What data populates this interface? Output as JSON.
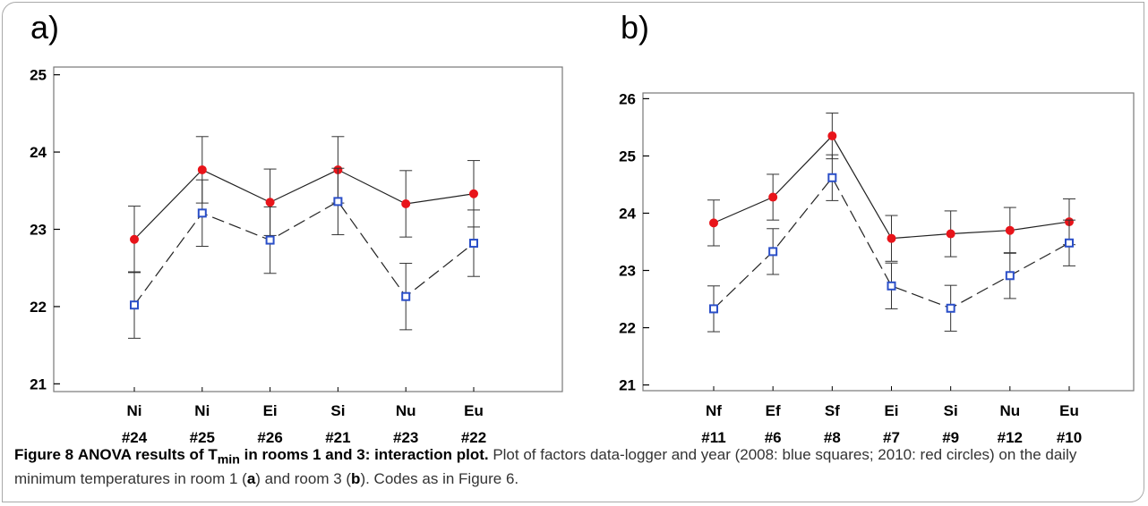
{
  "caption": {
    "figure_label": "Figure 8",
    "title_main": "ANOVA results of T",
    "title_sub": "min",
    "title_rest": " in rooms 1 and 3: interaction plot.",
    "text_before_a": " Plot of factors data-logger and year (2008: blue squares; 2010: red circles) on the daily minimum temperatures in room 1 (",
    "bold_a": "a",
    "text_between": ") and room 3 (",
    "bold_b": "b",
    "text_end": "). Codes as in Figure 6."
  },
  "colors": {
    "series_2008": "#2b4fc8",
    "series_2010": "#e8141a",
    "axis": "#000000"
  },
  "chart_data": [
    {
      "panel_label": "a)",
      "type": "line",
      "categories": [
        "Ni",
        "Ni",
        "Ei",
        "Si",
        "Nu",
        "Eu"
      ],
      "category_codes": [
        "#24",
        "#25",
        "#26",
        "#21",
        "#23",
        "#22"
      ],
      "ylim": [
        20.9,
        25.1
      ],
      "yticks": [
        21,
        22,
        23,
        24,
        25
      ],
      "grid": false,
      "series": [
        {
          "year": "2010",
          "marker": "circle",
          "line": "solid",
          "values": [
            22.87,
            23.77,
            23.35,
            23.77,
            23.33,
            23.46
          ],
          "errors": [
            0.43,
            0.43,
            0.43,
            0.43,
            0.43,
            0.43
          ]
        },
        {
          "year": "2008",
          "marker": "square",
          "line": "dashed",
          "values": [
            22.02,
            23.21,
            22.86,
            23.36,
            22.13,
            22.82
          ],
          "errors": [
            0.43,
            0.43,
            0.43,
            0.43,
            0.43,
            0.43
          ]
        }
      ]
    },
    {
      "panel_label": "b)",
      "type": "line",
      "categories": [
        "Nf",
        "Ef",
        "Sf",
        "Ei",
        "Si",
        "Nu",
        "Eu"
      ],
      "category_codes": [
        "#11",
        "#6",
        "#8",
        "#7",
        "#9",
        "#12",
        "#10"
      ],
      "ylim": [
        20.9,
        26.1
      ],
      "yticks": [
        21,
        22,
        23,
        24,
        25,
        26
      ],
      "grid": false,
      "series": [
        {
          "year": "2010",
          "marker": "circle",
          "line": "solid",
          "values": [
            23.83,
            24.28,
            25.35,
            23.56,
            23.64,
            23.7,
            23.85
          ],
          "errors": [
            0.4,
            0.4,
            0.4,
            0.4,
            0.4,
            0.4,
            0.4
          ]
        },
        {
          "year": "2008",
          "marker": "square",
          "line": "dashed",
          "values": [
            22.33,
            23.33,
            24.62,
            22.73,
            22.34,
            22.91,
            23.48
          ],
          "errors": [
            0.4,
            0.4,
            0.4,
            0.4,
            0.4,
            0.4,
            0.4
          ]
        }
      ]
    }
  ]
}
